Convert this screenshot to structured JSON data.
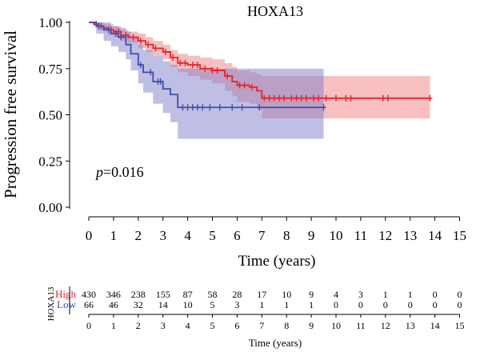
{
  "chart_data": {
    "type": "line",
    "subtype": "kaplan-meier",
    "title": "HOXA13",
    "xlabel": "Time (years)",
    "ylabel": "Progression free survival",
    "xlim": [
      0,
      15
    ],
    "ylim": [
      0,
      1
    ],
    "x_ticks": [
      "0",
      "1",
      "2",
      "3",
      "4",
      "5",
      "6",
      "7",
      "8",
      "9",
      "10",
      "11",
      "12",
      "13",
      "14",
      "15"
    ],
    "y_ticks": [
      "0.00",
      "0.25",
      "0.50",
      "0.75",
      "1.00"
    ],
    "grid": false,
    "annotation": {
      "italic": "p",
      "rest": "=0.016"
    },
    "series": [
      {
        "name": "High",
        "color": "#e8202a",
        "band_color": "#f08080",
        "x": [
          0,
          0.2,
          0.4,
          0.6,
          0.8,
          1.0,
          1.3,
          1.6,
          2.0,
          2.3,
          2.6,
          3.0,
          3.3,
          3.6,
          4.0,
          4.5,
          5.0,
          5.5,
          5.8,
          6.0,
          6.5,
          6.8,
          7.0,
          9.0,
          11.0,
          13.8
        ],
        "y": [
          1.0,
          0.99,
          0.98,
          0.97,
          0.96,
          0.95,
          0.93,
          0.92,
          0.9,
          0.88,
          0.86,
          0.84,
          0.81,
          0.78,
          0.77,
          0.75,
          0.74,
          0.71,
          0.68,
          0.66,
          0.65,
          0.63,
          0.59,
          0.59,
          0.59,
          0.59
        ],
        "upper": [
          1.0,
          1.0,
          1.0,
          0.99,
          0.99,
          0.98,
          0.96,
          0.95,
          0.94,
          0.92,
          0.9,
          0.88,
          0.85,
          0.83,
          0.82,
          0.81,
          0.8,
          0.78,
          0.76,
          0.74,
          0.73,
          0.72,
          0.71,
          0.71,
          0.71,
          0.71
        ],
        "lower": [
          1.0,
          0.98,
          0.96,
          0.95,
          0.93,
          0.92,
          0.9,
          0.89,
          0.86,
          0.84,
          0.82,
          0.8,
          0.76,
          0.73,
          0.71,
          0.69,
          0.67,
          0.63,
          0.6,
          0.57,
          0.56,
          0.53,
          0.48,
          0.48,
          0.48,
          0.48
        ],
        "censor_x": [
          0.3,
          0.5,
          0.9,
          1.2,
          1.5,
          1.8,
          2.1,
          2.4,
          2.7,
          3.1,
          3.4,
          3.7,
          3.9,
          4.2,
          4.4,
          4.7,
          5.0,
          5.2,
          5.6,
          6.1,
          6.3,
          6.6,
          7.1,
          7.3,
          7.5,
          7.7,
          7.9,
          8.2,
          8.4,
          8.6,
          8.8,
          9.1,
          9.3,
          9.6,
          10.0,
          10.4,
          10.6,
          11.9,
          12.1,
          13.8
        ]
      },
      {
        "name": "Low",
        "color": "#3a4fa8",
        "band_color": "#8080cc",
        "x": [
          0,
          0.3,
          0.6,
          0.9,
          1.2,
          1.5,
          1.7,
          2.0,
          2.2,
          2.6,
          3.0,
          3.3,
          3.6,
          9.5
        ],
        "y": [
          1.0,
          0.98,
          0.96,
          0.94,
          0.92,
          0.88,
          0.83,
          0.77,
          0.73,
          0.68,
          0.64,
          0.61,
          0.54,
          0.54
        ],
        "upper": [
          1.0,
          1.0,
          1.0,
          0.98,
          0.97,
          0.95,
          0.92,
          0.88,
          0.85,
          0.82,
          0.79,
          0.77,
          0.75,
          0.75
        ],
        "lower": [
          1.0,
          0.94,
          0.9,
          0.87,
          0.84,
          0.8,
          0.74,
          0.67,
          0.62,
          0.56,
          0.51,
          0.46,
          0.37,
          0.37
        ],
        "censor_x": [
          0.4,
          0.8,
          1.1,
          1.3,
          2.1,
          2.5,
          2.8,
          2.9,
          3.8,
          4.0,
          4.2,
          4.4,
          4.6,
          4.9,
          5.3,
          5.8,
          6.2,
          6.9,
          9.5
        ]
      }
    ],
    "risk_table": {
      "group_label": "HOXA13",
      "xlabel": "Time (years)",
      "times": [
        "0",
        "1",
        "2",
        "3",
        "4",
        "5",
        "6",
        "7",
        "8",
        "9",
        "10",
        "11",
        "12",
        "13",
        "14",
        "15"
      ],
      "rows": [
        {
          "name": "High",
          "color": "#e8202a",
          "counts": [
            "430",
            "346",
            "238",
            "155",
            "87",
            "58",
            "28",
            "17",
            "10",
            "9",
            "4",
            "3",
            "1",
            "1",
            "0",
            "0"
          ]
        },
        {
          "name": "Low",
          "color": "#3a4fa8",
          "counts": [
            "66",
            "46",
            "32",
            "14",
            "10",
            "5",
            "3",
            "1",
            "1",
            "1",
            "0",
            "0",
            "0",
            "0",
            "0",
            "0"
          ]
        }
      ]
    }
  }
}
